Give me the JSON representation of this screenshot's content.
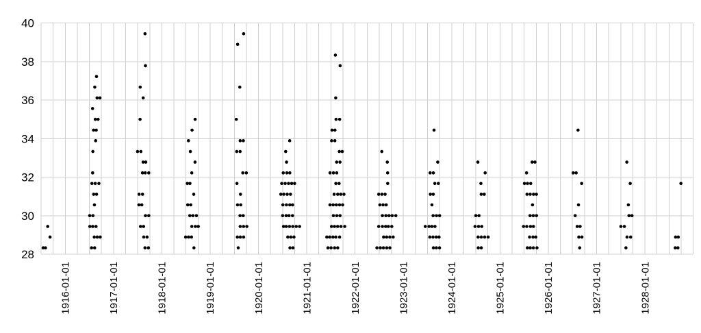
{
  "figure": {
    "title": "",
    "background": "#ffffff",
    "text_color": "#000000"
  },
  "chart_data": {
    "type": "scatter",
    "subtype": "dot-strip-plot-over-time",
    "title": "",
    "xlabel": "",
    "ylabel": "",
    "legend": false,
    "grid": true,
    "grid_color": "#cfcfcf",
    "dot_color": "#000000",
    "ylim": [
      28,
      40
    ],
    "y_ticks": [
      28,
      30,
      32,
      34,
      36,
      38,
      40
    ],
    "x_tick_labels": [
      "1916-01-01",
      "1917-01-01",
      "1918-01-01",
      "1919-01-01",
      "1920-01-01",
      "1921-01-01",
      "1922-01-01",
      "1923-01-01",
      "1924-01-01",
      "1925-01-01",
      "1926-01-01",
      "1927-01-01",
      "1928-01-01"
    ],
    "x_range_years": [
      1915.5,
      1929.0
    ],
    "x_gridline_interval_years": 0.25,
    "x_tick_label_rotation_deg": -90,
    "notes": "Each dot is one observation; values fall on 5/9-degree steps (28.33, 28.89, 29.44, 30.0, ... 39.44). Dots cluster in the middle of each year. n = number of dots at that value in that year's cluster.",
    "series": [
      {
        "year": 1915,
        "points": [
          {
            "v": 29.44,
            "n": 1
          },
          {
            "v": 28.89,
            "n": 1
          },
          {
            "v": 28.33,
            "n": 2
          }
        ]
      },
      {
        "year": 1916,
        "points": [
          {
            "v": 37.22,
            "n": 1
          },
          {
            "v": 36.67,
            "n": 1
          },
          {
            "v": 36.11,
            "n": 2
          },
          {
            "v": 35.56,
            "n": 1
          },
          {
            "v": 35.0,
            "n": 2
          },
          {
            "v": 34.44,
            "n": 2
          },
          {
            "v": 33.89,
            "n": 1
          },
          {
            "v": 33.33,
            "n": 1
          },
          {
            "v": 32.22,
            "n": 1
          },
          {
            "v": 31.67,
            "n": 3
          },
          {
            "v": 31.11,
            "n": 2
          },
          {
            "v": 30.56,
            "n": 1
          },
          {
            "v": 30.0,
            "n": 2
          },
          {
            "v": 29.44,
            "n": 3
          },
          {
            "v": 28.89,
            "n": 3
          },
          {
            "v": 28.33,
            "n": 2
          }
        ]
      },
      {
        "year": 1917,
        "points": [
          {
            "v": 39.44,
            "n": 1
          },
          {
            "v": 37.78,
            "n": 1
          },
          {
            "v": 36.67,
            "n": 1
          },
          {
            "v": 36.11,
            "n": 1
          },
          {
            "v": 35.0,
            "n": 1
          },
          {
            "v": 33.33,
            "n": 2
          },
          {
            "v": 32.78,
            "n": 2
          },
          {
            "v": 32.22,
            "n": 3
          },
          {
            "v": 31.11,
            "n": 2
          },
          {
            "v": 30.56,
            "n": 2
          },
          {
            "v": 30.0,
            "n": 2
          },
          {
            "v": 29.44,
            "n": 2
          },
          {
            "v": 28.89,
            "n": 2
          },
          {
            "v": 28.33,
            "n": 2
          }
        ]
      },
      {
        "year": 1918,
        "points": [
          {
            "v": 35.0,
            "n": 1
          },
          {
            "v": 34.44,
            "n": 1
          },
          {
            "v": 33.89,
            "n": 1
          },
          {
            "v": 33.33,
            "n": 1
          },
          {
            "v": 32.78,
            "n": 1
          },
          {
            "v": 32.22,
            "n": 1
          },
          {
            "v": 31.67,
            "n": 2
          },
          {
            "v": 31.11,
            "n": 1
          },
          {
            "v": 30.56,
            "n": 2
          },
          {
            "v": 30.0,
            "n": 3
          },
          {
            "v": 29.44,
            "n": 3
          },
          {
            "v": 28.89,
            "n": 3
          },
          {
            "v": 28.33,
            "n": 1
          }
        ]
      },
      {
        "year": 1919,
        "points": [
          {
            "v": 39.44,
            "n": 1
          },
          {
            "v": 38.89,
            "n": 1
          },
          {
            "v": 36.67,
            "n": 1
          },
          {
            "v": 35.0,
            "n": 1
          },
          {
            "v": 33.89,
            "n": 2
          },
          {
            "v": 33.33,
            "n": 2
          },
          {
            "v": 32.22,
            "n": 2
          },
          {
            "v": 31.67,
            "n": 1
          },
          {
            "v": 31.11,
            "n": 1
          },
          {
            "v": 30.56,
            "n": 2
          },
          {
            "v": 30.0,
            "n": 2
          },
          {
            "v": 29.44,
            "n": 3
          },
          {
            "v": 28.89,
            "n": 3
          },
          {
            "v": 28.33,
            "n": 1
          }
        ]
      },
      {
        "year": 1920,
        "points": [
          {
            "v": 33.89,
            "n": 1
          },
          {
            "v": 33.33,
            "n": 1
          },
          {
            "v": 32.78,
            "n": 1
          },
          {
            "v": 32.22,
            "n": 3
          },
          {
            "v": 31.67,
            "n": 5
          },
          {
            "v": 31.11,
            "n": 4
          },
          {
            "v": 30.56,
            "n": 4
          },
          {
            "v": 30.0,
            "n": 4
          },
          {
            "v": 29.44,
            "n": 6
          },
          {
            "v": 28.89,
            "n": 3
          },
          {
            "v": 28.33,
            "n": 2
          }
        ]
      },
      {
        "year": 1921,
        "points": [
          {
            "v": 38.33,
            "n": 1
          },
          {
            "v": 37.78,
            "n": 1
          },
          {
            "v": 36.11,
            "n": 1
          },
          {
            "v": 35.0,
            "n": 2
          },
          {
            "v": 34.44,
            "n": 2
          },
          {
            "v": 33.89,
            "n": 2
          },
          {
            "v": 33.33,
            "n": 2
          },
          {
            "v": 32.78,
            "n": 2
          },
          {
            "v": 32.22,
            "n": 3
          },
          {
            "v": 31.67,
            "n": 2
          },
          {
            "v": 31.11,
            "n": 4
          },
          {
            "v": 30.56,
            "n": 5
          },
          {
            "v": 30.0,
            "n": 3
          },
          {
            "v": 29.44,
            "n": 5
          },
          {
            "v": 28.89,
            "n": 5
          },
          {
            "v": 28.33,
            "n": 4
          }
        ]
      },
      {
        "year": 1922,
        "points": [
          {
            "v": 33.33,
            "n": 1
          },
          {
            "v": 32.78,
            "n": 1
          },
          {
            "v": 32.22,
            "n": 1
          },
          {
            "v": 31.67,
            "n": 1
          },
          {
            "v": 31.11,
            "n": 3
          },
          {
            "v": 30.56,
            "n": 3
          },
          {
            "v": 30.0,
            "n": 5
          },
          {
            "v": 29.44,
            "n": 5
          },
          {
            "v": 28.89,
            "n": 4
          },
          {
            "v": 28.33,
            "n": 5
          }
        ]
      },
      {
        "year": 1923,
        "points": [
          {
            "v": 34.44,
            "n": 1
          },
          {
            "v": 32.78,
            "n": 1
          },
          {
            "v": 32.22,
            "n": 2
          },
          {
            "v": 31.67,
            "n": 2
          },
          {
            "v": 31.11,
            "n": 2
          },
          {
            "v": 30.56,
            "n": 1
          },
          {
            "v": 30.0,
            "n": 3
          },
          {
            "v": 29.44,
            "n": 4
          },
          {
            "v": 28.89,
            "n": 4
          },
          {
            "v": 28.33,
            "n": 3
          }
        ]
      },
      {
        "year": 1924,
        "points": [
          {
            "v": 32.78,
            "n": 1
          },
          {
            "v": 32.22,
            "n": 1
          },
          {
            "v": 31.67,
            "n": 1
          },
          {
            "v": 31.11,
            "n": 2
          },
          {
            "v": 30.0,
            "n": 2
          },
          {
            "v": 29.44,
            "n": 3
          },
          {
            "v": 28.89,
            "n": 4
          },
          {
            "v": 28.33,
            "n": 2
          }
        ]
      },
      {
        "year": 1925,
        "points": [
          {
            "v": 32.78,
            "n": 2
          },
          {
            "v": 32.22,
            "n": 1
          },
          {
            "v": 31.67,
            "n": 3
          },
          {
            "v": 31.11,
            "n": 4
          },
          {
            "v": 30.56,
            "n": 1
          },
          {
            "v": 30.0,
            "n": 3
          },
          {
            "v": 29.44,
            "n": 4
          },
          {
            "v": 28.89,
            "n": 3
          },
          {
            "v": 28.33,
            "n": 4
          }
        ]
      },
      {
        "year": 1926,
        "points": [
          {
            "v": 34.44,
            "n": 1
          },
          {
            "v": 32.22,
            "n": 2
          },
          {
            "v": 31.67,
            "n": 1
          },
          {
            "v": 30.56,
            "n": 1
          },
          {
            "v": 30.0,
            "n": 1
          },
          {
            "v": 29.44,
            "n": 2
          },
          {
            "v": 28.89,
            "n": 2
          },
          {
            "v": 28.33,
            "n": 1
          }
        ]
      },
      {
        "year": 1927,
        "points": [
          {
            "v": 32.78,
            "n": 1
          },
          {
            "v": 31.67,
            "n": 1
          },
          {
            "v": 30.56,
            "n": 1
          },
          {
            "v": 30.0,
            "n": 2
          },
          {
            "v": 29.44,
            "n": 2
          },
          {
            "v": 28.89,
            "n": 2
          },
          {
            "v": 28.33,
            "n": 1
          }
        ]
      },
      {
        "year": 1928,
        "cx": 0.72,
        "points": [
          {
            "v": 31.67,
            "n": 1
          },
          {
            "v": 28.89,
            "n": 2
          },
          {
            "v": 28.33,
            "n": 2
          }
        ]
      }
    ]
  }
}
